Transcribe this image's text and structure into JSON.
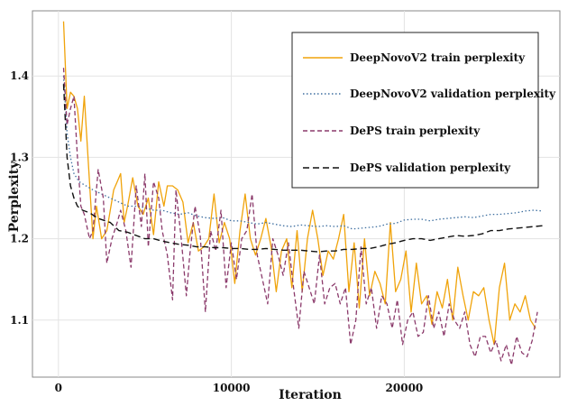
{
  "chart_data": {
    "type": "line",
    "xlabel": "Iteration",
    "ylabel": "Perplexity",
    "xlim": [
      -1500,
      29000
    ],
    "ylim": [
      1.03,
      1.48
    ],
    "x_ticks": [
      0,
      10000,
      20000
    ],
    "x_tick_labels": [
      "0",
      "10000",
      "20000"
    ],
    "y_ticks": [
      1.1,
      1.2,
      1.3,
      1.4
    ],
    "y_tick_labels": [
      "1.1",
      "1.2",
      "1.3",
      "1.4"
    ],
    "grid": true,
    "legend_position": "top-right",
    "series": [
      {
        "name": "DeepNovoV2 train perplexity",
        "color": "#f0a30a",
        "dash": "solid",
        "x": [
          300,
          500,
          700,
          900,
          1100,
          1300,
          1500,
          2000,
          2200,
          2500,
          2800,
          3200,
          3400,
          3600,
          3800,
          4000,
          4300,
          4600,
          4900,
          5200,
          5500,
          5800,
          6100,
          6300,
          6600,
          6900,
          7200,
          7500,
          7800,
          8100,
          8400,
          8700,
          9000,
          9300,
          9600,
          9900,
          10200,
          10500,
          10800,
          11100,
          11400,
          11700,
          12000,
          12300,
          12600,
          12900,
          13200,
          13500,
          13800,
          14100,
          14400,
          14700,
          15000,
          15300,
          15600,
          15900,
          16200,
          16500,
          16800,
          17100,
          17400,
          17700,
          18000,
          18300,
          18600,
          18900,
          19200,
          19500,
          19800,
          20100,
          20400,
          20700,
          21000,
          21300,
          21600,
          21900,
          22200,
          22500,
          22800,
          23100,
          23400,
          23700,
          24000,
          24300,
          24600,
          24900,
          25200,
          25500,
          25800,
          26100,
          26400,
          26700,
          27000,
          27300,
          27600
        ],
        "y": [
          1.467,
          1.36,
          1.38,
          1.375,
          1.36,
          1.32,
          1.375,
          1.2,
          1.24,
          1.2,
          1.21,
          1.26,
          1.27,
          1.28,
          1.22,
          1.24,
          1.275,
          1.24,
          1.23,
          1.25,
          1.205,
          1.27,
          1.24,
          1.265,
          1.265,
          1.26,
          1.245,
          1.195,
          1.22,
          1.185,
          1.19,
          1.2,
          1.255,
          1.195,
          1.22,
          1.2,
          1.145,
          1.21,
          1.255,
          1.2,
          1.18,
          1.2,
          1.225,
          1.19,
          1.135,
          1.185,
          1.2,
          1.14,
          1.21,
          1.135,
          1.2,
          1.235,
          1.2,
          1.155,
          1.185,
          1.175,
          1.2,
          1.23,
          1.135,
          1.195,
          1.115,
          1.2,
          1.13,
          1.16,
          1.145,
          1.12,
          1.22,
          1.135,
          1.15,
          1.185,
          1.11,
          1.17,
          1.12,
          1.13,
          1.095,
          1.135,
          1.115,
          1.15,
          1.1,
          1.165,
          1.13,
          1.1,
          1.135,
          1.13,
          1.14,
          1.1,
          1.07,
          1.14,
          1.17,
          1.1,
          1.12,
          1.11,
          1.13,
          1.1,
          1.09
        ]
      },
      {
        "name": "DeepNovoV2 validation perplexity",
        "color": "#3e6fa0",
        "dash": "dotted",
        "x": [
          300,
          500,
          700,
          900,
          1200,
          1600,
          2000,
          2500,
          3000,
          3500,
          4000,
          4500,
          5000,
          5500,
          6000,
          6500,
          7000,
          7500,
          8000,
          8500,
          9000,
          9500,
          10000,
          10500,
          11000,
          11500,
          12000,
          12500,
          13000,
          13500,
          14000,
          14500,
          15000,
          15500,
          16000,
          16500,
          17000,
          17500,
          18000,
          18500,
          19000,
          19500,
          20000,
          20500,
          21000,
          21500,
          22000,
          22500,
          23000,
          23500,
          24000,
          24500,
          25000,
          25500,
          26000,
          26500,
          27000,
          27500,
          28000
        ],
        "y": [
          1.4,
          1.33,
          1.3,
          1.28,
          1.27,
          1.265,
          1.26,
          1.255,
          1.25,
          1.245,
          1.24,
          1.24,
          1.238,
          1.235,
          1.235,
          1.232,
          1.23,
          1.232,
          1.228,
          1.226,
          1.225,
          1.226,
          1.222,
          1.222,
          1.22,
          1.218,
          1.22,
          1.218,
          1.216,
          1.215,
          1.217,
          1.216,
          1.215,
          1.216,
          1.215,
          1.216,
          1.212,
          1.213,
          1.214,
          1.215,
          1.218,
          1.219,
          1.223,
          1.224,
          1.224,
          1.222,
          1.224,
          1.225,
          1.226,
          1.227,
          1.226,
          1.228,
          1.23,
          1.23,
          1.231,
          1.232,
          1.234,
          1.235,
          1.234
        ]
      },
      {
        "name": "DePS train perplexity",
        "color": "#8b3a6b",
        "dash": "dashed",
        "x": [
          300,
          500,
          700,
          900,
          1100,
          1300,
          1500,
          1800,
          2000,
          2300,
          2600,
          2800,
          3100,
          3400,
          3600,
          3900,
          4200,
          4500,
          4800,
          5000,
          5200,
          5500,
          5800,
          6000,
          6300,
          6600,
          6800,
          7100,
          7400,
          7600,
          7900,
          8200,
          8500,
          8800,
          9100,
          9400,
          9700,
          10000,
          10300,
          10600,
          10900,
          11200,
          11500,
          11800,
          12100,
          12400,
          12700,
          13000,
          13300,
          13600,
          13900,
          14200,
          14500,
          14800,
          15100,
          15400,
          15700,
          16000,
          16300,
          16600,
          16900,
          17200,
          17500,
          17800,
          18100,
          18400,
          18700,
          19000,
          19300,
          19600,
          19900,
          20200,
          20500,
          20800,
          21100,
          21400,
          21700,
          22000,
          22300,
          22600,
          22900,
          23200,
          23500,
          23800,
          24100,
          24400,
          24700,
          25000,
          25300,
          25600,
          25900,
          26200,
          26500,
          26800,
          27100,
          27400,
          27700
        ],
        "y": [
          1.41,
          1.34,
          1.36,
          1.375,
          1.3,
          1.24,
          1.23,
          1.2,
          1.21,
          1.285,
          1.25,
          1.17,
          1.2,
          1.22,
          1.235,
          1.21,
          1.165,
          1.265,
          1.215,
          1.28,
          1.19,
          1.27,
          1.25,
          1.21,
          1.18,
          1.125,
          1.26,
          1.2,
          1.13,
          1.18,
          1.24,
          1.205,
          1.11,
          1.21,
          1.185,
          1.235,
          1.14,
          1.195,
          1.15,
          1.2,
          1.21,
          1.255,
          1.18,
          1.15,
          1.12,
          1.2,
          1.18,
          1.155,
          1.195,
          1.14,
          1.09,
          1.16,
          1.14,
          1.12,
          1.18,
          1.12,
          1.14,
          1.145,
          1.12,
          1.14,
          1.07,
          1.1,
          1.19,
          1.12,
          1.14,
          1.09,
          1.13,
          1.12,
          1.09,
          1.125,
          1.07,
          1.1,
          1.11,
          1.08,
          1.085,
          1.13,
          1.09,
          1.11,
          1.08,
          1.12,
          1.1,
          1.09,
          1.11,
          1.07,
          1.055,
          1.08,
          1.08,
          1.06,
          1.075,
          1.05,
          1.07,
          1.045,
          1.08,
          1.06,
          1.055,
          1.075,
          1.11
        ]
      },
      {
        "name": "DePS validation perplexity",
        "color": "#111111",
        "dash": "longdash",
        "x": [
          300,
          500,
          700,
          900,
          1100,
          1400,
          1800,
          2300,
          3000,
          3500,
          4000,
          4500,
          5000,
          5500,
          6000,
          6500,
          7000,
          7500,
          8000,
          8500,
          9000,
          9500,
          10000,
          10500,
          11000,
          11500,
          12000,
          12500,
          13000,
          13500,
          14000,
          14500,
          15000,
          15500,
          16000,
          16500,
          17000,
          17500,
          18000,
          18500,
          19000,
          19500,
          20000,
          20500,
          21000,
          21500,
          22000,
          22500,
          23000,
          23500,
          24000,
          24500,
          25000,
          25500,
          26000,
          26500,
          27000,
          27500,
          28000
        ],
        "y": [
          1.39,
          1.3,
          1.265,
          1.25,
          1.24,
          1.235,
          1.232,
          1.225,
          1.22,
          1.21,
          1.208,
          1.204,
          1.2,
          1.2,
          1.197,
          1.195,
          1.193,
          1.192,
          1.19,
          1.19,
          1.189,
          1.189,
          1.188,
          1.188,
          1.187,
          1.187,
          1.188,
          1.187,
          1.186,
          1.186,
          1.186,
          1.185,
          1.184,
          1.185,
          1.185,
          1.187,
          1.187,
          1.188,
          1.188,
          1.19,
          1.193,
          1.195,
          1.198,
          1.2,
          1.2,
          1.198,
          1.2,
          1.202,
          1.204,
          1.203,
          1.204,
          1.206,
          1.21,
          1.21,
          1.212,
          1.213,
          1.214,
          1.215,
          1.216
        ]
      }
    ]
  }
}
